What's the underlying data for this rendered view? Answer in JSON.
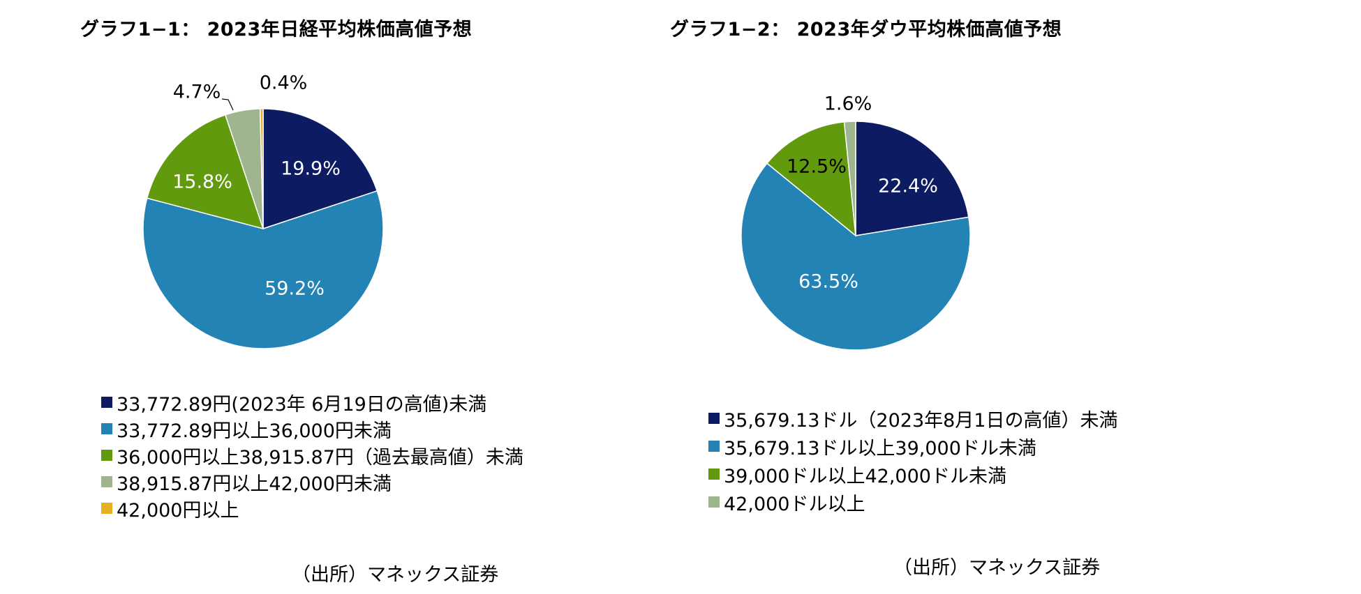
{
  "chart_data": [
    {
      "type": "pie",
      "title": "グラフ1−1： 2023年日経平均株価高値予想",
      "slices": [
        {
          "label": "33,772.89円(2023年 6月19日の高値)未満",
          "value": 19.9,
          "data_label": "19.9%",
          "color": "#0d1b63"
        },
        {
          "label": "33,772.89円以上36,000円未満",
          "value": 59.2,
          "data_label": "59.2%",
          "color": "#2383b5"
        },
        {
          "label": "36,000円以上38,915.87円（過去最高値）未満",
          "value": 15.8,
          "data_label": "15.8%",
          "color": "#629a0d"
        },
        {
          "label": "38,915.87円以上42,000円未満",
          "value": 4.7,
          "data_label": "4.7%",
          "color": "#9eb58f"
        },
        {
          "label": "42,000円以上",
          "value": 0.4,
          "data_label": "0.4%",
          "color": "#e7b023"
        }
      ],
      "legend_position": "bottom",
      "source": "（出所）マネックス証券"
    },
    {
      "type": "pie",
      "title": "グラフ1−2： 2023年ダウ平均株価高値予想",
      "slices": [
        {
          "label": "35,679.13ドル（2023年8月1日の高値）未満",
          "value": 22.4,
          "data_label": "22.4%",
          "color": "#0d1b63"
        },
        {
          "label": "35,679.13ドル以上39,000ドル未満",
          "value": 63.5,
          "data_label": "63.5%",
          "color": "#2383b5"
        },
        {
          "label": "39,000ドル以上42,000ドル未満",
          "value": 12.5,
          "data_label": "12.5%",
          "color": "#629a0d"
        },
        {
          "label": "42,000ドル以上",
          "value": 1.6,
          "data_label": "1.6%",
          "color": "#9eb58f"
        }
      ],
      "legend_position": "bottom",
      "source": "（出所）マネックス証券"
    }
  ]
}
